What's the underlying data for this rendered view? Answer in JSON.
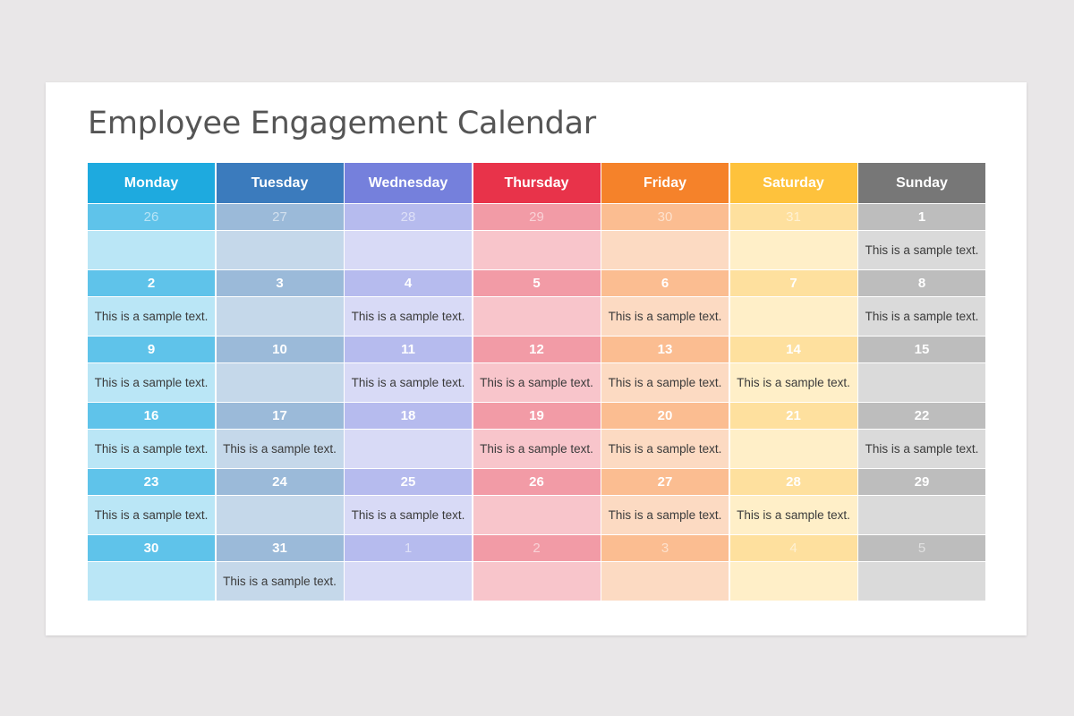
{
  "title": "Employee Engagement Calendar",
  "colors": {
    "monday": "#1eaadf",
    "tuesday": "#3b7bbd",
    "wednesday": "#7580dc",
    "thursday": "#e8334a",
    "friday": "#f5822a",
    "saturday": "#fec23c",
    "sunday": "#777777"
  },
  "days": [
    "Monday",
    "Tuesday",
    "Wednesday",
    "Thursday",
    "Friday",
    "Saturday",
    "Sunday"
  ],
  "weeks": [
    {
      "dates": [
        "26",
        "27",
        "28",
        "29",
        "30",
        "31",
        "1"
      ],
      "notes": [
        "",
        "",
        "",
        "",
        "",
        "",
        "This is a sample text."
      ]
    },
    {
      "dates": [
        "2",
        "3",
        "4",
        "5",
        "6",
        "7",
        "8"
      ],
      "notes": [
        "This is a sample text.",
        "",
        "This is a sample text.",
        "",
        "This is a sample text.",
        "",
        "This is a sample text."
      ]
    },
    {
      "dates": [
        "9",
        "10",
        "11",
        "12",
        "13",
        "14",
        "15"
      ],
      "notes": [
        "This is a sample text.",
        "",
        "This is a sample text.",
        "This is a sample text.",
        "This is a sample text.",
        "This is a sample text.",
        ""
      ]
    },
    {
      "dates": [
        "16",
        "17",
        "18",
        "19",
        "20",
        "21",
        "22"
      ],
      "notes": [
        "This is a sample text.",
        "This is a sample text.",
        "",
        "This is a sample text.",
        "This is a sample text.",
        "",
        "This is a sample text."
      ]
    },
    {
      "dates": [
        "23",
        "24",
        "25",
        "26",
        "27",
        "28",
        "29"
      ],
      "notes": [
        "This is a sample text.",
        "",
        "This is a sample text.",
        "",
        "This is a sample text.",
        "This is a sample text.",
        ""
      ]
    },
    {
      "dates": [
        "30",
        "31",
        "1",
        "2",
        "3",
        "4",
        "5"
      ],
      "notes": [
        "",
        "This is a sample text.",
        "",
        "",
        "",
        "",
        ""
      ]
    }
  ]
}
